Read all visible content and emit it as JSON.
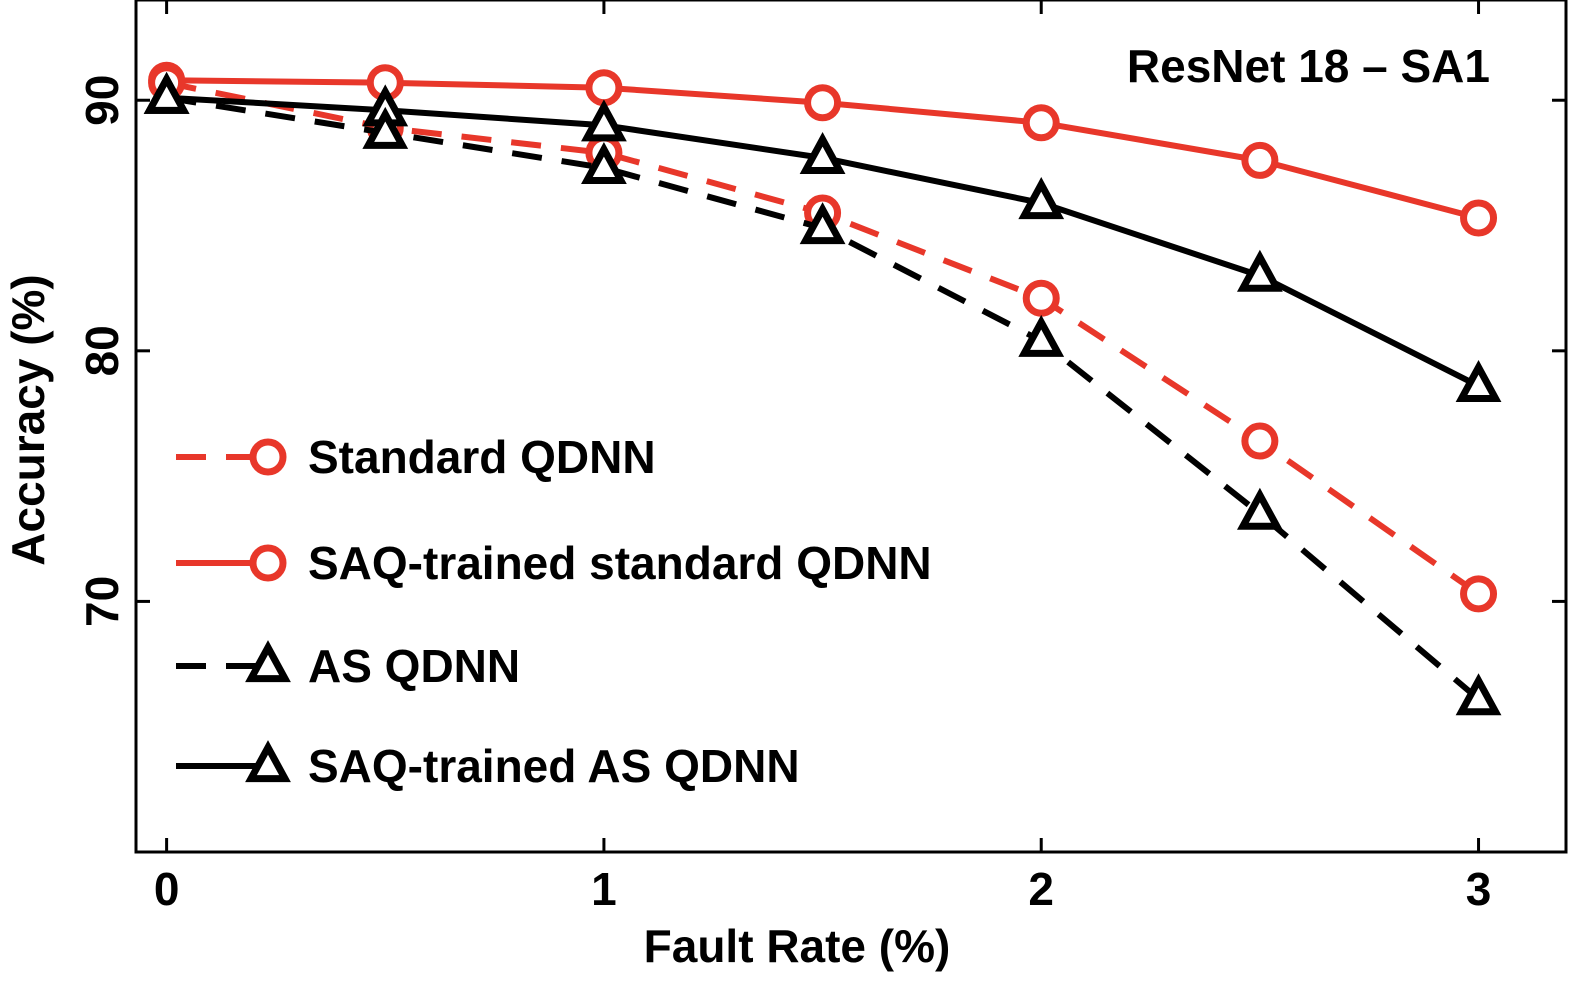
{
  "chart_data": {
    "type": "line",
    "title": "ResNet 18 – SA1",
    "xlabel": "Fault Rate (%)",
    "ylabel": "Accuracy (%)",
    "xlim": [
      -0.07,
      3.2
    ],
    "ylim": [
      60,
      94
    ],
    "xticks": [
      0,
      1,
      2,
      3
    ],
    "xtick_labels": [
      "0",
      "1",
      "2",
      "3"
    ],
    "yticks": [
      70,
      80,
      90
    ],
    "ytick_labels": [
      "70",
      "80",
      "90"
    ],
    "grid": false,
    "legend_position": "left",
    "series": [
      {
        "name": "Standard QDNN",
        "x": [
          0,
          0.5,
          1,
          1.5,
          2,
          2.5,
          3
        ],
        "values": [
          90.7,
          88.9,
          87.9,
          85.5,
          82.1,
          76.4,
          70.3
        ],
        "color": "#e8372a",
        "line_style": "dashed",
        "marker": "circle"
      },
      {
        "name": "SAQ-trained standard QDNN",
        "x": [
          0,
          0.5,
          1,
          1.5,
          2,
          2.5,
          3
        ],
        "values": [
          90.8,
          90.7,
          90.5,
          89.9,
          89.1,
          87.6,
          85.3
        ],
        "color": "#e8372a",
        "line_style": "solid",
        "marker": "circle"
      },
      {
        "name": "AS QDNN",
        "x": [
          0,
          0.5,
          1,
          1.5,
          2,
          2.5,
          3
        ],
        "values": [
          90.1,
          88.7,
          87.3,
          84.9,
          80.4,
          73.5,
          66.1
        ],
        "color": "#000000",
        "line_style": "dashed",
        "marker": "triangle"
      },
      {
        "name": "SAQ-trained AS QDNN",
        "x": [
          0,
          0.5,
          1,
          1.5,
          2,
          2.5,
          3
        ],
        "values": [
          90.1,
          89.6,
          89.0,
          87.7,
          85.9,
          83.0,
          78.6
        ],
        "color": "#000000",
        "line_style": "solid",
        "marker": "triangle"
      }
    ]
  }
}
